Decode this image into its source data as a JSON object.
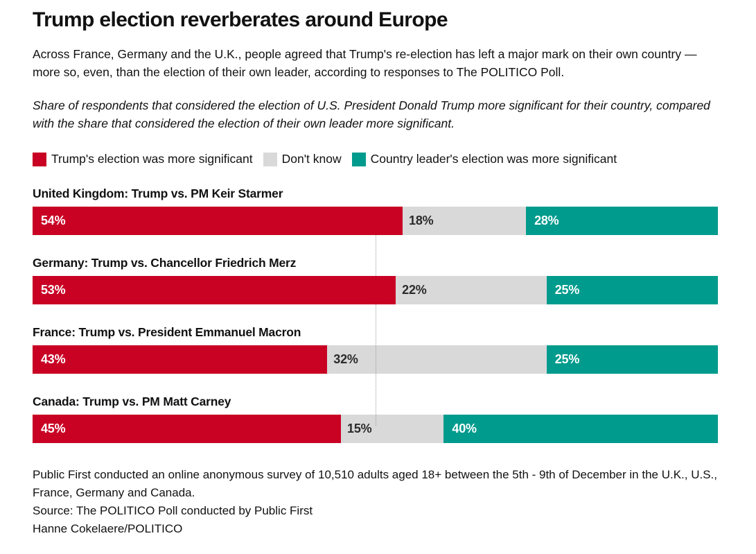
{
  "header": {
    "title": "Trump election reverberates around Europe",
    "description": "Across France, Germany and the U.K., people agreed that Trump's re-election has left a major mark on their own country — more so, even, than the election of their own leader, according to responses to The POLITICO Poll.",
    "note": "Share of respondents that considered the election of U.S. President Donald Trump more significant for their country, compared with the share that considered the election of their own leader more significant."
  },
  "legend": {
    "items": [
      {
        "label": "Trump's election was more significant",
        "color": "#c90224"
      },
      {
        "label": "Don't know",
        "color": "#d9d9d9"
      },
      {
        "label": "Country leader's election was more significant",
        "color": "#009b8d"
      }
    ]
  },
  "chart_data": {
    "type": "bar",
    "subtype": "horizontal-stacked",
    "unit": "%",
    "xlim": [
      0,
      100
    ],
    "gridline_at": 50,
    "gridline_style": "dotted",
    "value_labels": "inside-start",
    "categories": [
      "United Kingdom: Trump vs. PM Keir Starmer",
      "Germany: Trump vs. Chancellor Friedrich Merz",
      "France: Trump vs. President Emmanuel Macron",
      "Canada: Trump vs. PM Matt Carney"
    ],
    "series": [
      {
        "name": "Trump's election was more significant",
        "color": "#c90224",
        "values": [
          54,
          53,
          43,
          45
        ]
      },
      {
        "name": "Don't know",
        "color": "#d9d9d9",
        "values": [
          18,
          22,
          32,
          15
        ]
      },
      {
        "name": "Country leader's election was more significant",
        "color": "#009b8d",
        "values": [
          28,
          25,
          25,
          40
        ]
      }
    ]
  },
  "rows": [
    {
      "label": "United Kingdom: Trump vs. PM Keir Starmer",
      "trump": 54,
      "trump_label": "54%",
      "dontknow": 18,
      "dontknow_label": "18%",
      "leader": 28,
      "leader_label": "28%"
    },
    {
      "label": "Germany: Trump vs. Chancellor Friedrich Merz",
      "trump": 53,
      "trump_label": "53%",
      "dontknow": 22,
      "dontknow_label": "22%",
      "leader": 25,
      "leader_label": "25%"
    },
    {
      "label": "France: Trump vs. President Emmanuel Macron",
      "trump": 43,
      "trump_label": "43%",
      "dontknow": 32,
      "dontknow_label": "32%",
      "leader": 25,
      "leader_label": "25%"
    },
    {
      "label": "Canada: Trump vs. PM Matt Carney",
      "trump": 45,
      "trump_label": "45%",
      "dontknow": 15,
      "dontknow_label": "15%",
      "leader": 40,
      "leader_label": "40%"
    }
  ],
  "footer": {
    "methodology": "Public First conducted an online anonymous survey of 10,510 adults aged 18+ between the 5th - 9th of December in the U.K., U.S., France, Germany and Canada.",
    "source": "Source: The POLITICO Poll conducted by Public First",
    "byline": "Hanne Cokelaere/POLITICO"
  }
}
